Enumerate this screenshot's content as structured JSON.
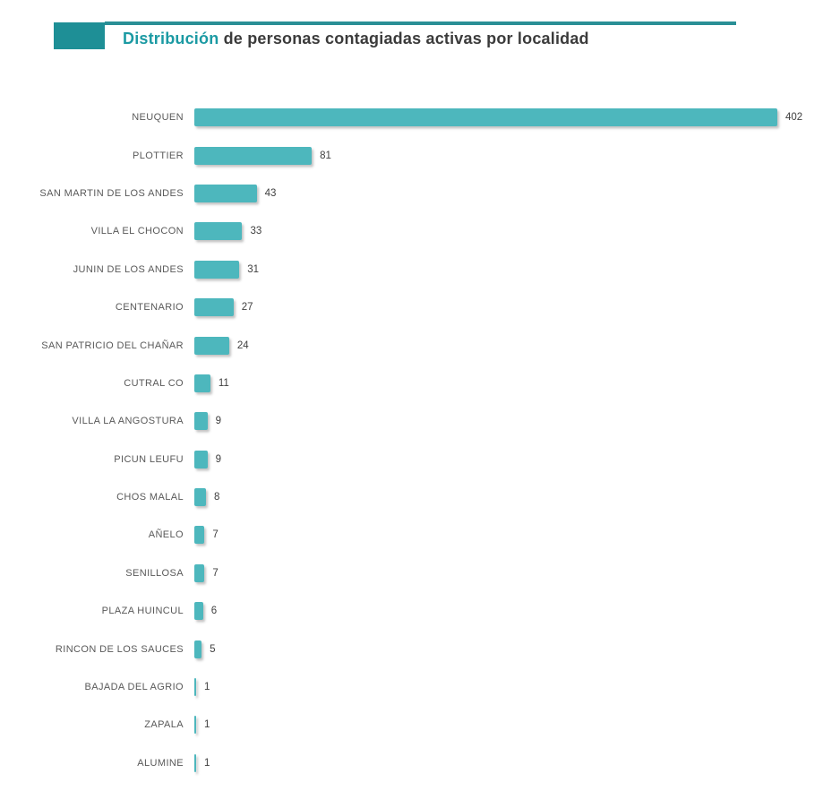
{
  "header": {
    "title_accent": "Distribución",
    "title_rest": " de personas contagiadas activas por localidad"
  },
  "colors": {
    "bar_fill": "#4db7bd",
    "header_accent": "#1e8f96",
    "title_accent_text": "#1b9aa3",
    "title_rest_text": "#3b3b3b",
    "category_label_text": "#595959",
    "value_label_text": "#404040"
  },
  "chart_data": {
    "type": "bar",
    "orientation": "horizontal",
    "title": "Distribución de personas contagiadas activas por localidad",
    "xlabel": "",
    "ylabel": "",
    "xlim": [
      0,
      402
    ],
    "grid": false,
    "legend": false,
    "value_labels": "end-of-bar",
    "categories": [
      "NEUQUEN",
      "PLOTTIER",
      "SAN MARTIN DE LOS ANDES",
      "VILLA EL CHOCON",
      "JUNIN DE LOS ANDES",
      "CENTENARIO",
      "SAN PATRICIO DEL CHAÑAR",
      "CUTRAL CO",
      "VILLA LA ANGOSTURA",
      "PICUN LEUFU",
      "CHOS MALAL",
      "AÑELO",
      "SENILLOSA",
      "PLAZA HUINCUL",
      "RINCON DE LOS SAUCES",
      "BAJADA DEL AGRIO",
      "ZAPALA",
      "ALUMINE"
    ],
    "values": [
      402,
      81,
      43,
      33,
      31,
      27,
      24,
      11,
      9,
      9,
      8,
      7,
      7,
      6,
      5,
      1,
      1,
      1
    ]
  }
}
